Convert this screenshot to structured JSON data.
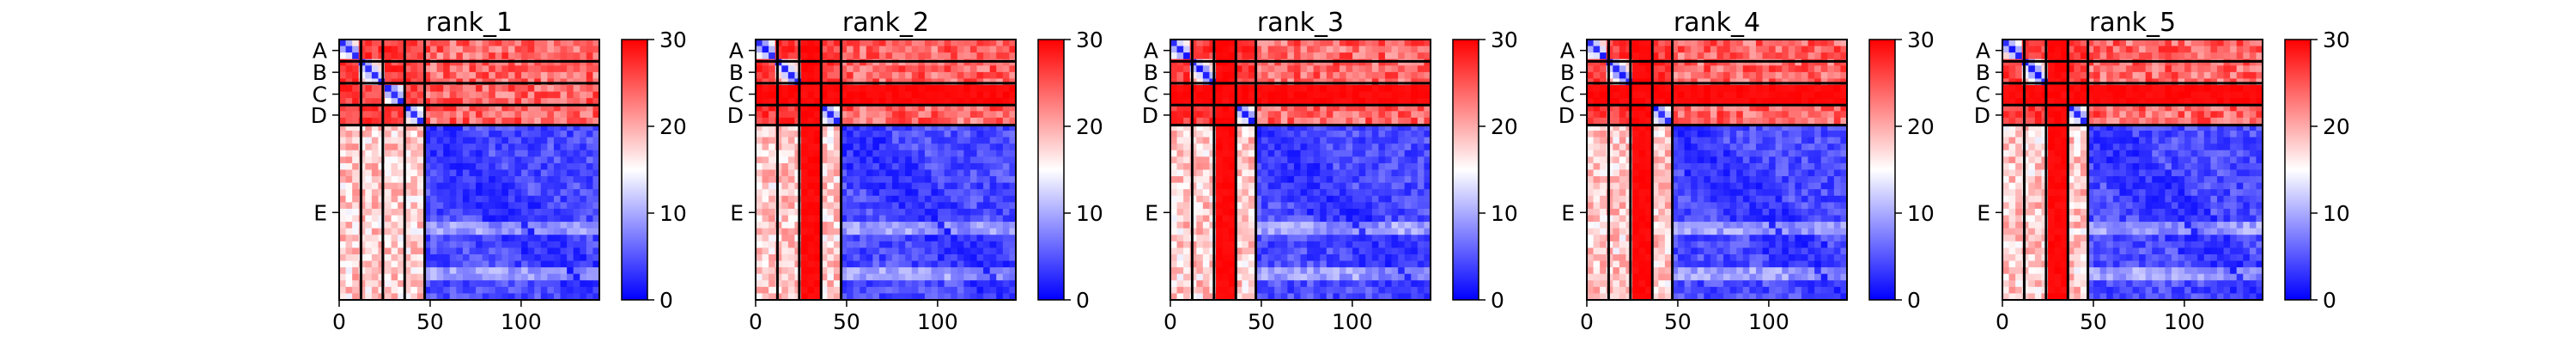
{
  "figure": {
    "background": "#ffffff"
  },
  "chart_data": {
    "type": "heatmap",
    "colormap": {
      "low": "#0000ff",
      "mid": "#ffffff",
      "high": "#ff0000",
      "vmin": 0,
      "vmax": 30
    },
    "colorbar_ticks": [
      "0",
      "10",
      "20",
      "30"
    ],
    "x_ticks": [
      0,
      50,
      100
    ],
    "x_tick_labels": [
      "0",
      "50",
      "100"
    ],
    "xlim": [
      0,
      143
    ],
    "ylim": [
      143,
      0
    ],
    "chain_labels": [
      "A",
      "B",
      "C",
      "D",
      "E"
    ],
    "chain_boundaries": [
      0,
      12,
      24,
      36,
      47,
      143
    ],
    "panels": [
      {
        "title": "rank_1",
        "high_chain": -1
      },
      {
        "title": "rank_2",
        "high_chain": 2
      },
      {
        "title": "rank_3",
        "high_chain": 2
      },
      {
        "title": "rank_4",
        "high_chain": 2
      },
      {
        "title": "rank_5",
        "high_chain": 2
      }
    ]
  }
}
